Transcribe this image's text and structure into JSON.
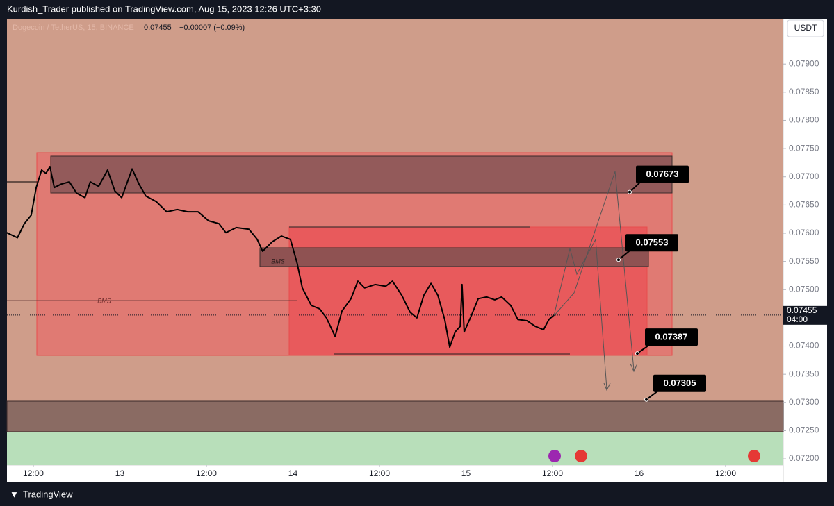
{
  "page": {
    "publisher_line": "Kurdish_Trader published on TradingView.com, Aug 15, 2023 12:26 UTC+3:30",
    "brand": "TradingView",
    "currency_button": "USDT"
  },
  "chart_data": {
    "type": "line",
    "symbol": "Dogecoin / TetherUS, 15, BINANCE",
    "last_price": 0.07455,
    "change": "−0.00007 (−0.09%)",
    "countdown": "04:00",
    "zone_labels": [
      "BMS",
      "BMS"
    ],
    "levels": [
      0.07673,
      0.07553,
      0.07387,
      0.07305
    ],
    "x": [
      -15.7,
      -14.2,
      -13.25,
      -12.3,
      -11.6,
      -10.85,
      -10.25,
      -9.7,
      -9.1,
      -8.15,
      -7,
      -6,
      -4.85,
      -4.1,
      -2.95,
      -1.7,
      -0.7,
      0.25,
      1.7,
      2.65,
      3.6,
      5.05,
      6.5,
      7.95,
      9.4,
      10.85,
      12.3,
      13.75,
      14.7,
      16.15,
      17.9,
      19.05,
      19.8,
      21.15,
      22.4,
      23.65,
      24.6,
      25.3,
      26.55,
      27.7,
      28.65,
      29.85,
      30.8,
      32.05,
      33,
      33.95,
      35.4,
      36.85,
      37.8,
      39.1,
      40.25,
      41.2,
      42.15,
      43.15,
      44.1,
      45.05,
      45.75,
      46.5,
      47.2,
      47.45,
      47.75,
      48.7,
      49.7,
      50.85,
      52,
      52.95,
      54.2,
      55.2,
      56.45,
      57.6,
      58.75,
      59.5,
      60.2
    ],
    "series": [
      {
        "color": "#000000",
        "values": [
          0.07601,
          0.07592,
          0.07617,
          0.07632,
          0.07681,
          0.07712,
          0.07706,
          0.07718,
          0.07681,
          0.07687,
          0.07691,
          0.07671,
          0.07663,
          0.07691,
          0.07683,
          0.07712,
          0.07675,
          0.07663,
          0.07714,
          0.07687,
          0.07666,
          0.07656,
          0.07638,
          0.07642,
          0.07638,
          0.07638,
          0.07622,
          0.07617,
          0.07601,
          0.0761,
          0.07607,
          0.07589,
          0.07568,
          0.07585,
          0.07595,
          0.07589,
          0.07546,
          0.07503,
          0.07472,
          0.07466,
          0.0745,
          0.07417,
          0.07462,
          0.07484,
          0.07515,
          0.07503,
          0.07509,
          0.07506,
          0.07515,
          0.0749,
          0.0746,
          0.0745,
          0.0749,
          0.07511,
          0.0749,
          0.07447,
          0.07398,
          0.07425,
          0.07435,
          0.07509,
          0.07425,
          0.07453,
          0.07484,
          0.07487,
          0.07482,
          0.07487,
          0.07472,
          0.07447,
          0.07445,
          0.07435,
          0.07429,
          0.07447,
          0.07455
        ]
      }
    ],
    "xlim": [
      -15.66,
      92
    ],
    "xticks": [
      {
        "value": -12,
        "label": "12:00"
      },
      0,
      {
        "value": 12,
        "label": "12:00"
      },
      {
        "value": 24,
        "label": "14"
      },
      {
        "value": 36,
        "label": "12:00"
      },
      {
        "value": 48,
        "label": "15"
      },
      {
        "value": 60,
        "label": "12:00"
      },
      {
        "value": 72,
        "label": "16"
      },
      {
        "value": 84,
        "label": "12:00"
      }
    ],
    "xtick_zero_label": "13",
    "ylim": [
      0.07189,
      0.07979
    ],
    "yticks": [
      {
        "value": 0.072,
        "label": "0.07200"
      },
      {
        "value": 0.0725,
        "label": "0.07250"
      },
      {
        "value": 0.073,
        "label": "0.07300"
      },
      {
        "value": 0.0735,
        "label": "0.07350"
      },
      {
        "value": 0.074,
        "label": "0.07400"
      },
      {
        "value": 0.0745,
        "label": "0.07450"
      },
      {
        "value": 0.075,
        "label": "0.07500"
      },
      {
        "value": 0.0755,
        "label": "0.07550"
      },
      {
        "value": 0.076,
        "label": "0.07600"
      },
      {
        "value": 0.0765,
        "label": "0.07650"
      },
      {
        "value": 0.077,
        "label": "0.07700"
      },
      {
        "value": 0.0775,
        "label": "0.07750"
      },
      {
        "value": 0.078,
        "label": "0.07800"
      },
      {
        "value": 0.0785,
        "label": "0.07850"
      },
      {
        "value": 0.079,
        "label": "0.07900"
      }
    ]
  }
}
